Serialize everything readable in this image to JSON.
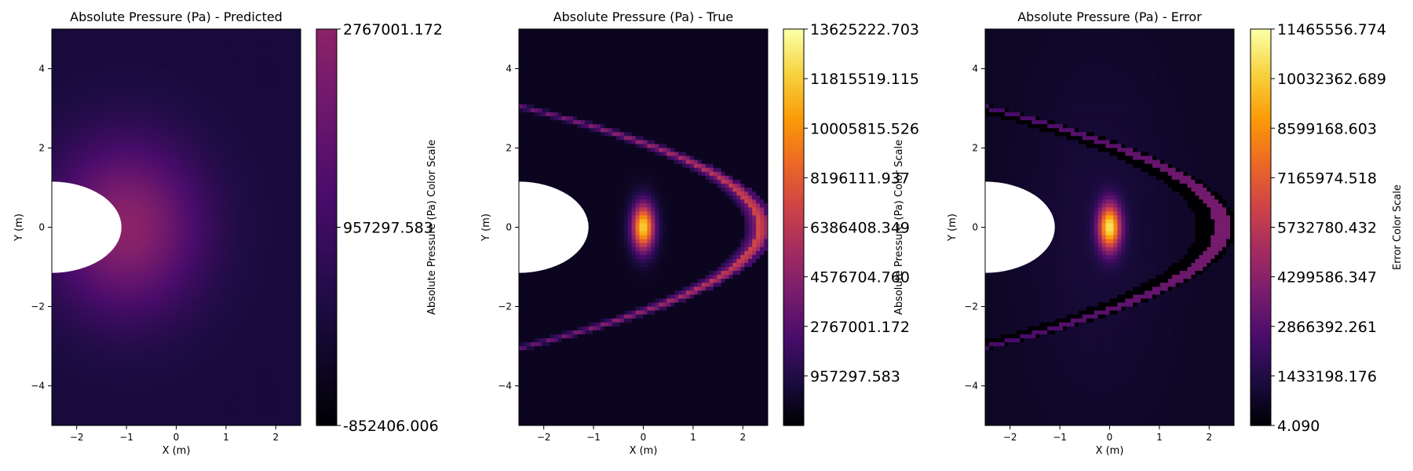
{
  "colors": {
    "inferno": [
      "#000004",
      "#1b0c41",
      "#4a0c6b",
      "#781c6d",
      "#a52c60",
      "#cf4446",
      "#ed6925",
      "#fb9b06",
      "#f7d13d",
      "#fcffa4"
    ],
    "background": "#ffffff",
    "obstacle": "#ffffff"
  },
  "chart_data": [
    {
      "type": "heatmap",
      "title": "Absolute Pressure (Pa) - Predicted",
      "xlabel": "X (m)",
      "ylabel": "Y (m)",
      "xlim": [
        -2.5,
        2.5
      ],
      "ylim": [
        -5,
        5
      ],
      "xticks": [
        -2,
        -1,
        0,
        1,
        2
      ],
      "yticks": [
        -4,
        -2,
        0,
        2,
        4
      ],
      "colormap": "inferno",
      "colorbar": {
        "label": "Absolute Pressure (Pa) Color Scale",
        "range": [
          -852406.006,
          2767001.172
        ],
        "ticks": [
          -852406.006,
          957297.583,
          2767001.172
        ],
        "tick_labels": [
          "-852406.006",
          "957297.583",
          "2767001.172"
        ]
      },
      "field": "smooth_glow"
    },
    {
      "type": "heatmap",
      "title": "Absolute Pressure (Pa) - True",
      "xlabel": "X (m)",
      "ylabel": "Y (m)",
      "xlim": [
        -2.5,
        2.5
      ],
      "ylim": [
        -5,
        5
      ],
      "xticks": [
        -2,
        -1,
        0,
        1,
        2
      ],
      "yticks": [
        -4,
        -2,
        0,
        2,
        4
      ],
      "colormap": "inferno",
      "colorbar": {
        "label": "Absolute Pressure (Pa) Color Scale",
        "range": [
          -852406.006,
          13625222.703
        ],
        "ticks": [
          957297.583,
          2767001.172,
          4576704.76,
          6386408.349,
          8196111.937,
          10005815.526,
          11815519.115,
          13625222.703
        ],
        "tick_labels": [
          "957297.583",
          "2767001.172",
          "4576704.760",
          "6386408.349",
          "8196111.937",
          "10005815.526",
          "11815519.115",
          "13625222.703"
        ]
      },
      "field": "shock"
    },
    {
      "type": "heatmap",
      "title": "Absolute Pressure (Pa) - Error",
      "xlabel": "X (m)",
      "ylabel": "Y (m)",
      "xlim": [
        -2.5,
        2.5
      ],
      "ylim": [
        -5,
        5
      ],
      "xticks": [
        -2,
        -1,
        0,
        1,
        2
      ],
      "yticks": [
        -4,
        -2,
        0,
        2,
        4
      ],
      "colormap": "inferno",
      "colorbar": {
        "label": "Error Color Scale",
        "range": [
          4.09,
          11465556.774
        ],
        "ticks": [
          4.09,
          1433198.176,
          2866392.261,
          4299586.347,
          5732780.432,
          7165974.518,
          8599168.603,
          10032362.689,
          11465556.774
        ],
        "tick_labels": [
          "4.090",
          "1433198.176",
          "2866392.261",
          "4299586.347",
          "5732780.432",
          "7165974.518",
          "8599168.603",
          "10032362.689",
          "11465556.774"
        ]
      },
      "field": "error"
    }
  ]
}
